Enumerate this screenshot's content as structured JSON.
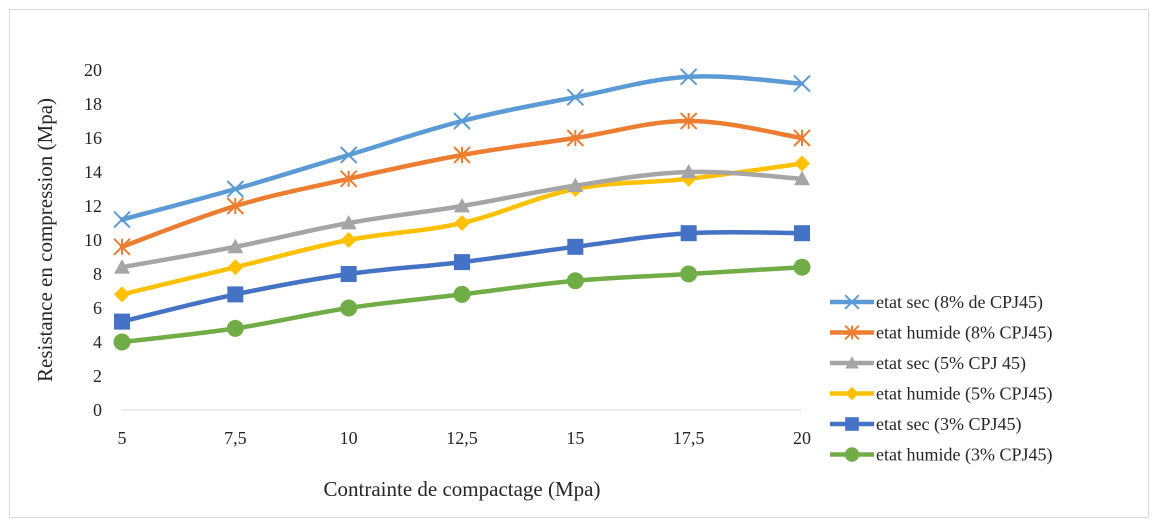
{
  "chart_data": {
    "type": "line",
    "title": "",
    "xlabel": "Contrainte de compactage (Mpa)",
    "ylabel": "Resistance en compression (Mpa)",
    "categories": [
      "5",
      "7,5",
      "10",
      "12,5",
      "15",
      "17,5",
      "20"
    ],
    "ylim": [
      0,
      20
    ],
    "yticks": [
      "0",
      "2",
      "4",
      "6",
      "8",
      "10",
      "12",
      "14",
      "16",
      "18",
      "20"
    ],
    "grid": false,
    "legend_position": "right",
    "series": [
      {
        "name": "etat sec (8% de CPJ45)",
        "color": "#5B9BD5",
        "marker": "x",
        "values": [
          11.2,
          13.0,
          15.0,
          17.0,
          18.4,
          19.6,
          19.2
        ]
      },
      {
        "name": "etat humide (8% CPJ45)",
        "color": "#ED7D31",
        "marker": "star",
        "values": [
          9.6,
          12.0,
          13.6,
          15.0,
          16.0,
          17.0,
          16.0
        ]
      },
      {
        "name": "etat sec (5% CPJ 45)",
        "color": "#A5A5A5",
        "marker": "triangle",
        "values": [
          8.4,
          9.6,
          11.0,
          12.0,
          13.2,
          14.0,
          13.6
        ]
      },
      {
        "name": "etat humide (5% CPJ45)",
        "color": "#FFC000",
        "marker": "diamond",
        "values": [
          6.8,
          8.4,
          10.0,
          11.0,
          13.0,
          13.6,
          14.5
        ]
      },
      {
        "name": "etat sec (3% CPJ45)",
        "color": "#4472C4",
        "marker": "square",
        "values": [
          5.2,
          6.8,
          8.0,
          8.7,
          9.6,
          10.4,
          10.4
        ]
      },
      {
        "name": "etat humide (3% CPJ45)",
        "color": "#70AD47",
        "marker": "circle",
        "values": [
          4.0,
          4.8,
          6.0,
          6.8,
          7.6,
          8.0,
          8.4
        ]
      }
    ]
  }
}
